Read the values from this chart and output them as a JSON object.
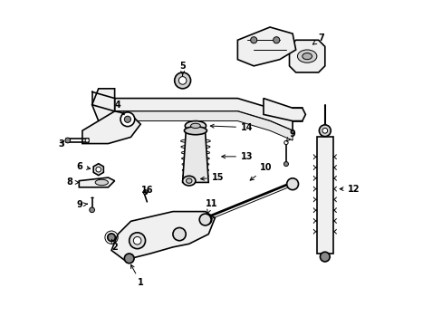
{
  "background_color": "#ffffff",
  "line_color": "#000000",
  "label_color": "#000000",
  "figsize": [
    4.89,
    3.6
  ],
  "dpi": 100
}
